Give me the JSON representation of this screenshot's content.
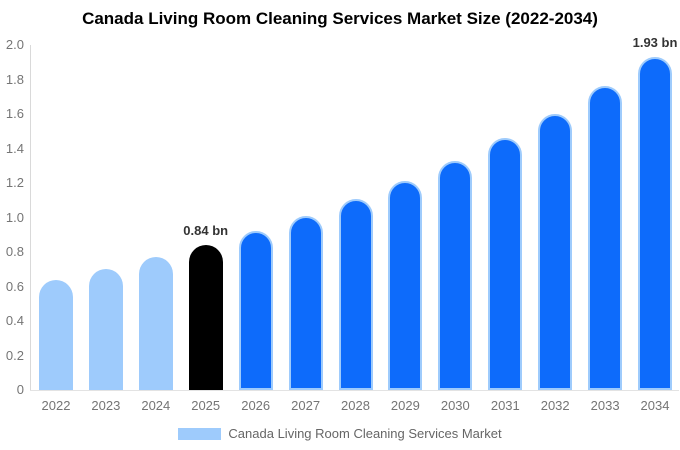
{
  "title": "Canada Living Room Cleaning Services Market Size (2022-2034)",
  "colors": {
    "light_blue": "#9ecbfc",
    "blue": "#0d6bfb",
    "black": "#000000",
    "bar_border": "#9ecbfc",
    "axis_line": "#d9d9d9",
    "baseline": "#e3e3e3",
    "tick_text": "#757575",
    "annotation_text": "#333333",
    "legend_text": "#666666",
    "title_text": "#000000"
  },
  "chart_data": {
    "type": "bar",
    "title": "Canada Living Room Cleaning Services Market Size (2022-2034)",
    "categories": [
      "2022",
      "2023",
      "2024",
      "2025",
      "2026",
      "2027",
      "2028",
      "2029",
      "2030",
      "2031",
      "2032",
      "2033",
      "2034"
    ],
    "values": [
      0.64,
      0.7,
      0.77,
      0.84,
      0.92,
      1.01,
      1.11,
      1.21,
      1.33,
      1.46,
      1.6,
      1.76,
      1.93
    ],
    "bar_colors": [
      "light_blue",
      "light_blue",
      "light_blue",
      "black",
      "blue",
      "blue",
      "blue",
      "blue",
      "blue",
      "blue",
      "blue",
      "blue",
      "blue"
    ],
    "y_ticks": [
      "2.0",
      "1.8",
      "1.6",
      "1.4",
      "1.2",
      "1.0",
      "0.8",
      "0.6",
      "0.4",
      "0.2",
      "0"
    ],
    "ylim": [
      0,
      2.0
    ],
    "xlabel": "",
    "ylabel": "",
    "grid": false,
    "annotations": [
      {
        "category": "2025",
        "text": "0.84 bn"
      },
      {
        "category": "2034",
        "text": "1.93 bn"
      }
    ],
    "legend": {
      "label": "Canada Living Room Cleaning Services Market",
      "swatch_color_key": "light_blue",
      "position": "bottom"
    }
  }
}
